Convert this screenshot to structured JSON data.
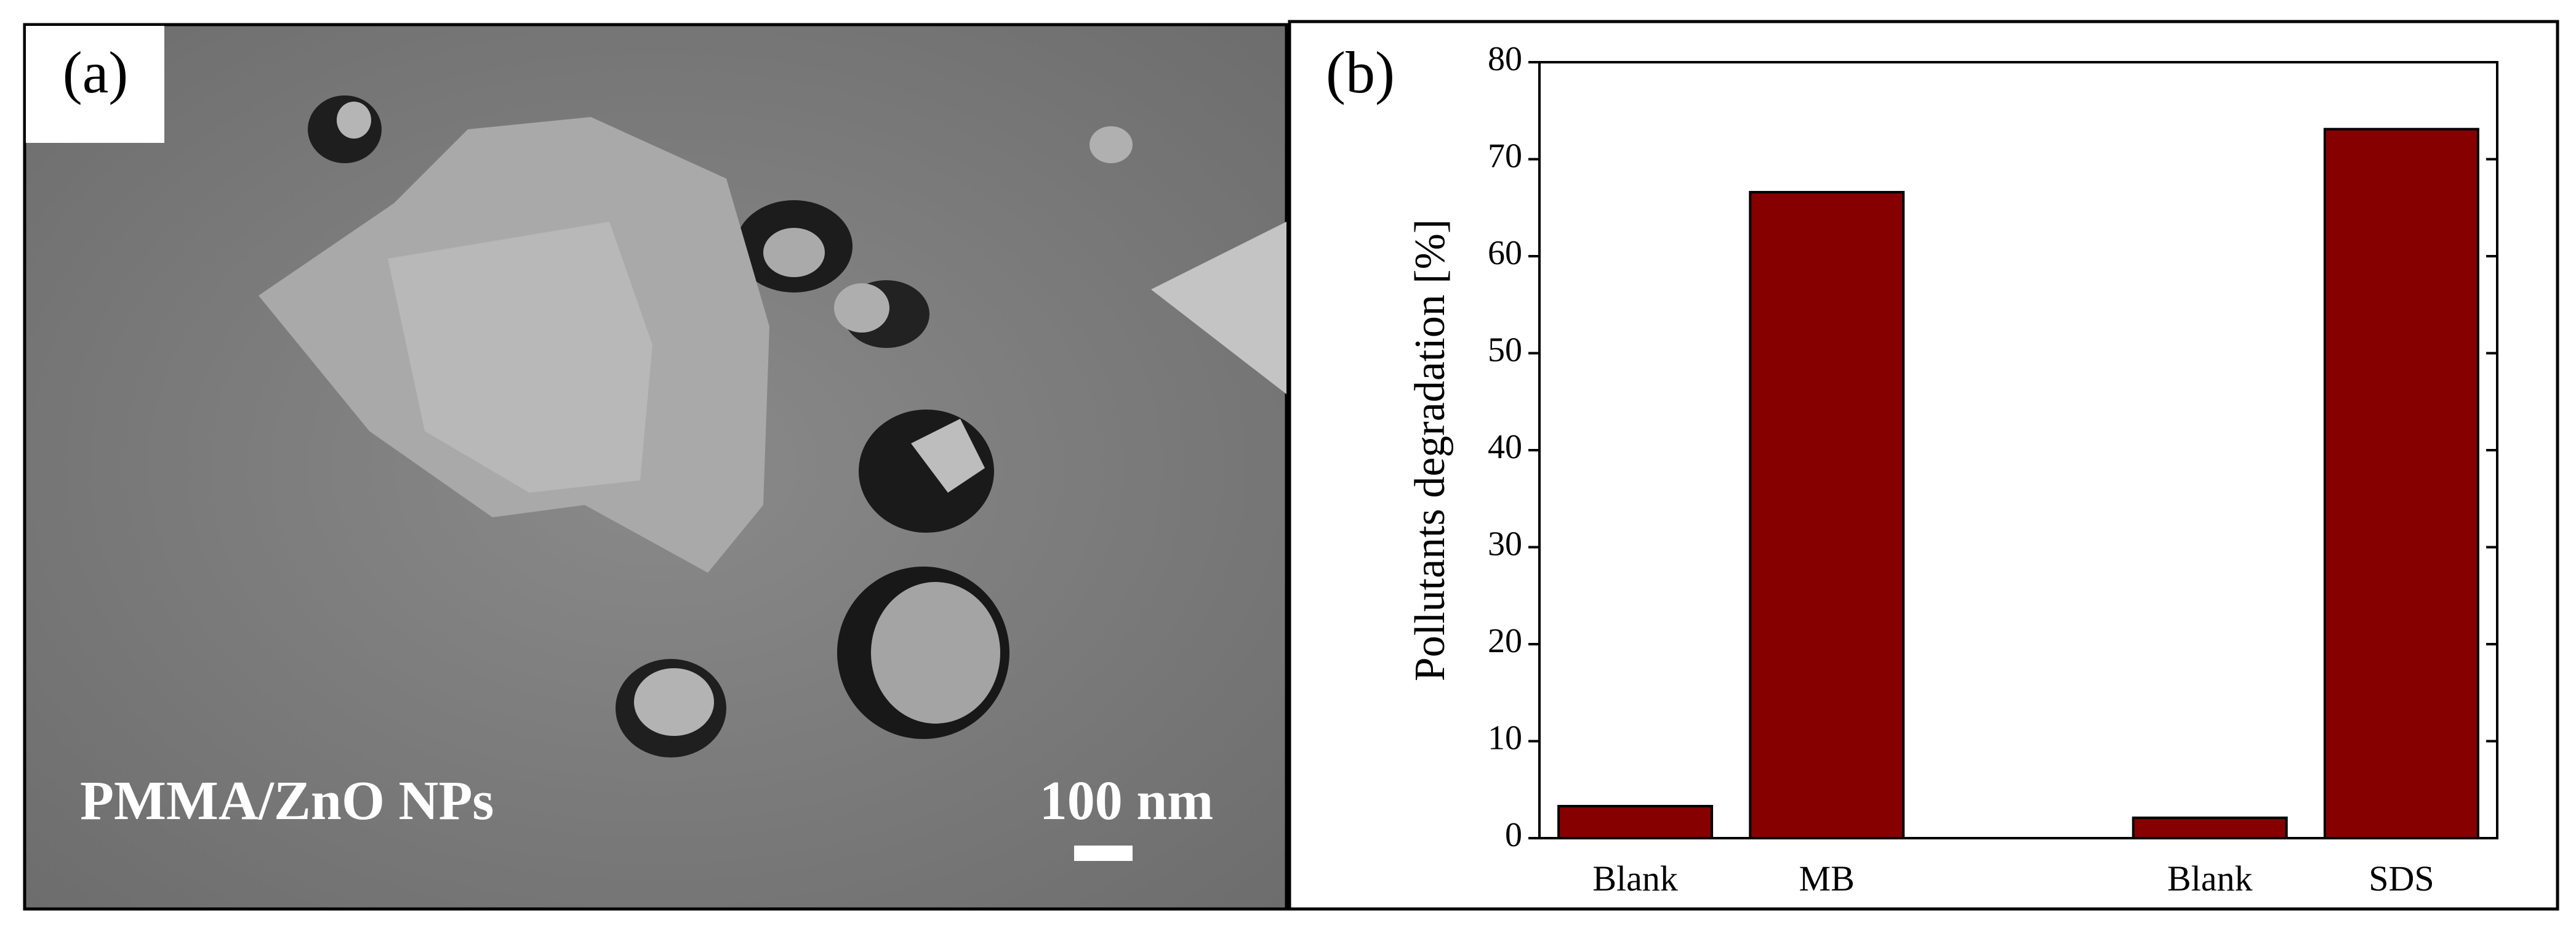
{
  "panel_a": {
    "label": "(a)",
    "caption": "PMMA/ZnO NPs",
    "scale_bar": "100 nm"
  },
  "chart_data": {
    "type": "bar",
    "panel_label": "(b)",
    "y_label": "Pollutants degradation [%]",
    "categories": [
      "Blank",
      "MB",
      null,
      "Blank",
      "SDS"
    ],
    "values": [
      3.3,
      66.6,
      null,
      2.1,
      73.1
    ],
    "color": "#860000",
    "ylim": [
      0,
      80
    ],
    "yticks": [
      0,
      10,
      20,
      30,
      40,
      50,
      60,
      70,
      80
    ]
  }
}
